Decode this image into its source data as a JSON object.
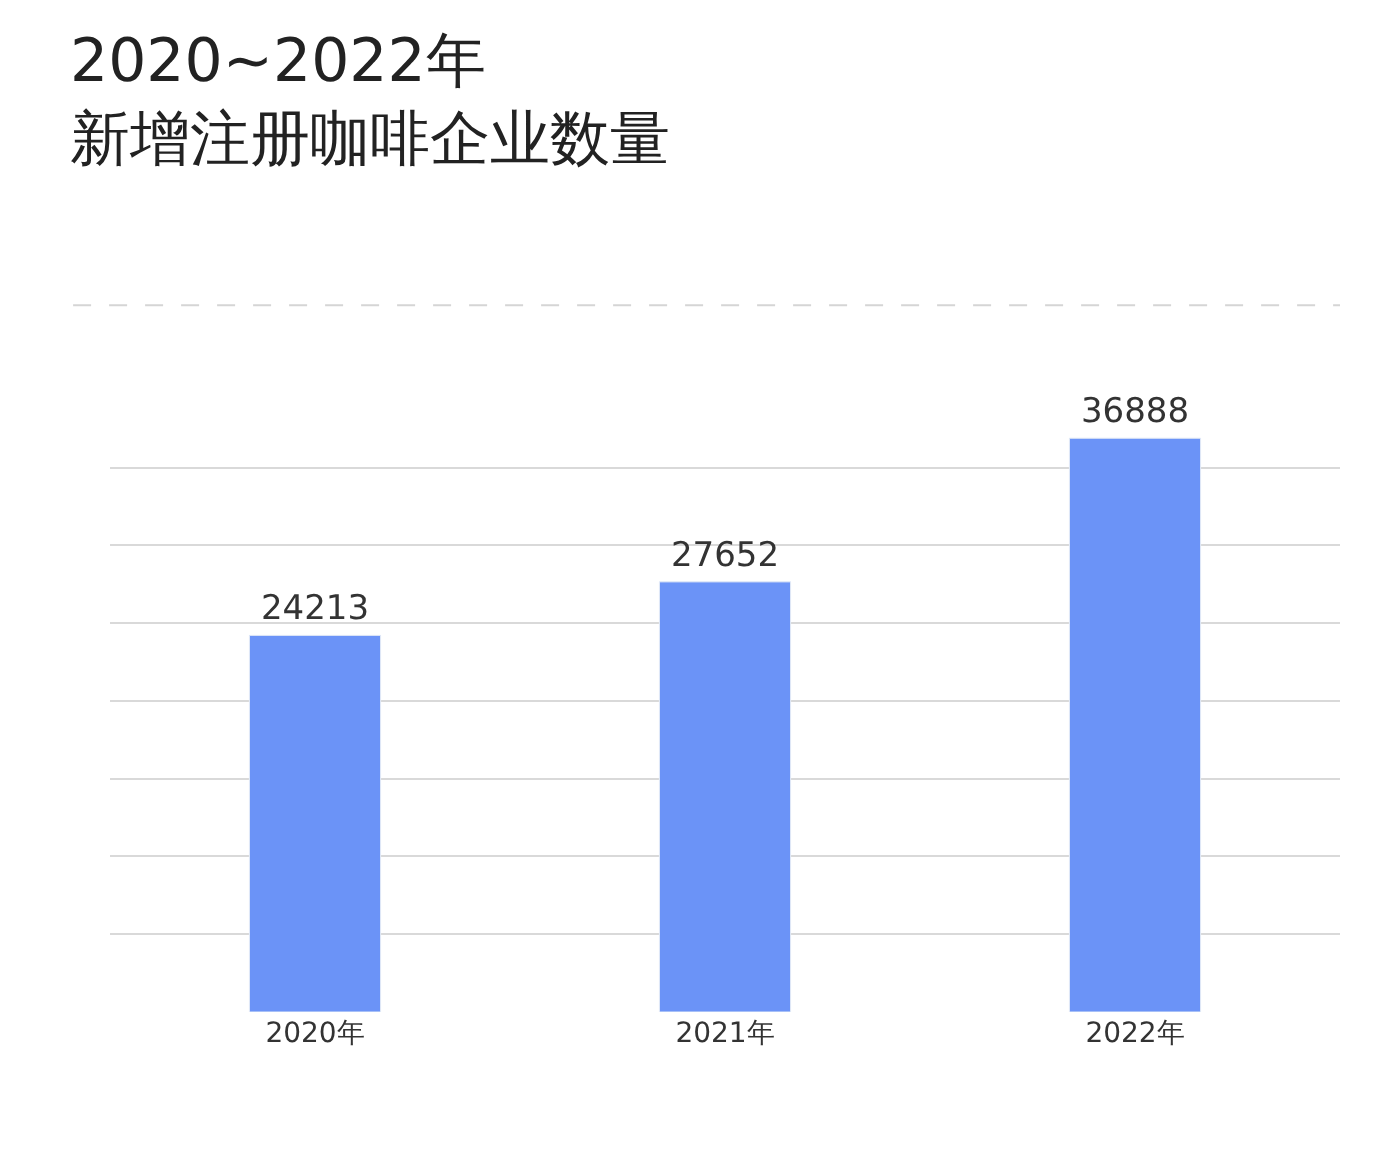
{
  "chart_data": {
    "type": "bar",
    "title": "2020~2022年",
    "subtitle": "新增注册咖啡企业数量",
    "categories": [
      "2020年",
      "2021年",
      "2022年"
    ],
    "values": [
      24213,
      27652,
      36888
    ],
    "color": "#6b93f7",
    "data_labels": true,
    "grid": "y",
    "tick_labels": "x"
  }
}
